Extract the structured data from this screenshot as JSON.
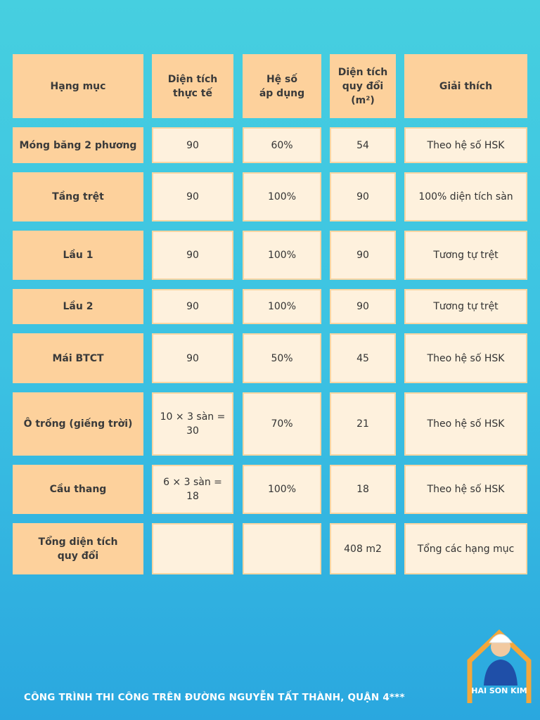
{
  "table": {
    "header": [
      "Hạng mục",
      "Diện tích\nthực tế",
      "Hệ số\náp dụng",
      "Diện tích\nquy đổi\n(m²)",
      "Giải thích"
    ],
    "rows": [
      [
        "Móng băng 2 phương",
        "90",
        "60%",
        "54",
        "Theo hệ số HSK"
      ],
      [
        "Tầng trệt",
        "90",
        "100%",
        "90",
        "100% diện tích sàn"
      ],
      [
        "Lầu 1",
        "90",
        "100%",
        "90",
        "Tương tự trệt"
      ],
      [
        "Lầu 2",
        "90",
        "100%",
        "90",
        "Tương tự trệt"
      ],
      [
        "Mái BTCT",
        "90",
        "50%",
        "45",
        "Theo hệ số HSK"
      ],
      [
        "Ô trống (giếng trời)",
        "10 × 3 sàn =\n30",
        "70%",
        "21",
        "Theo hệ số HSK"
      ],
      [
        "Cầu thang",
        "6 × 3 sàn =\n18",
        "100%",
        "18",
        "Theo hệ số HSK"
      ],
      [
        "Tổng diện tích\nquy đổi",
        null,
        null,
        "408 m2",
        "Tổng các hạng mục"
      ]
    ]
  },
  "footer": {
    "caption": "CÔNG TRÌNH THI CÔNG TRÊN ĐƯỜNG NGUYỄN TẤT THÀNH, QUẬN 4***",
    "logo": "HAI SON KIM"
  }
}
